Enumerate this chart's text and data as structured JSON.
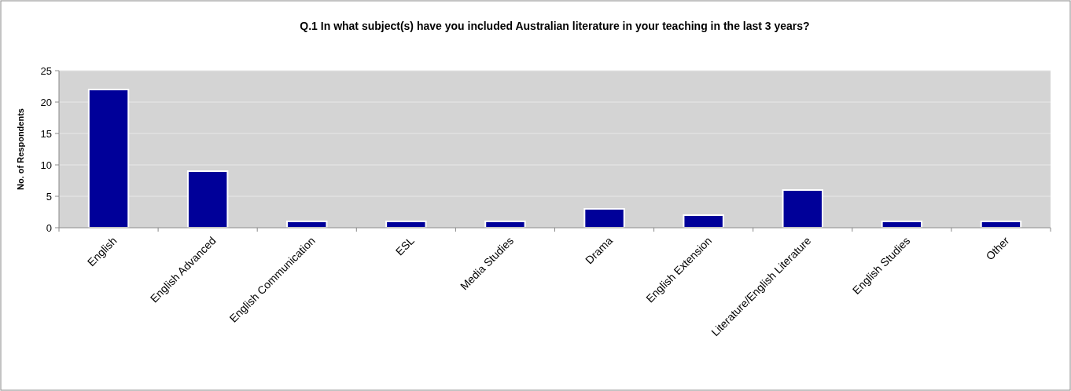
{
  "chart_data": {
    "type": "bar",
    "title": "Q.1 In what subject(s) have you included Australian literature in your teaching in the last 3 years?",
    "ylabel": "No. of Respondents",
    "categories": [
      "English",
      "English Advanced",
      "English Communication",
      "ESL",
      "Media Studies",
      "Drama",
      "English Extension",
      "Literature/English Literature",
      "English Studies",
      "Other"
    ],
    "values": [
      22,
      9,
      1,
      1,
      1,
      3,
      2,
      6,
      1,
      1
    ],
    "color": "#000099",
    "ylim": [
      0,
      25
    ],
    "yticks": [
      0,
      5,
      10,
      15,
      20,
      25
    ],
    "grid": "y"
  }
}
